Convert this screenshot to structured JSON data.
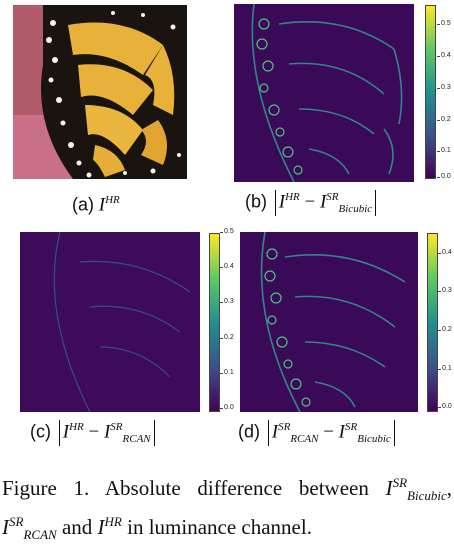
{
  "panels": {
    "a": {
      "letter": "(a)",
      "var": "I",
      "sup": "HR",
      "sub": ""
    },
    "b": {
      "letter": "(b)",
      "a_var": "I",
      "a_sup": "HR",
      "a_sub": "",
      "minus": "−",
      "b_var": "I",
      "b_sup": "SR",
      "b_sub": "Bicubic"
    },
    "c": {
      "letter": "(c)",
      "a_var": "I",
      "a_sup": "HR",
      "a_sub": "",
      "minus": "−",
      "b_var": "I",
      "b_sup": "SR",
      "b_sub": "RCAN"
    },
    "d": {
      "letter": "(d)",
      "a_var": "I",
      "a_sup": "SR",
      "a_sub": "RCAN",
      "minus": "−",
      "b_var": "I",
      "b_sup": "SR",
      "b_sub": "Bicubic"
    }
  },
  "colorbars": {
    "b": {
      "colormap": "viridis",
      "ticks": [
        "0.5",
        "0.4",
        "0.3",
        "0.2",
        "0.1",
        "0.0"
      ]
    },
    "c": {
      "colormap": "viridis",
      "ticks": [
        "0.5",
        "0.4",
        "0.3",
        "0.2",
        "0.1",
        "0.0"
      ]
    },
    "d": {
      "colormap": "viridis",
      "ticks": [
        "0.4",
        "0.3",
        "0.2",
        "0.1",
        "0.0"
      ]
    }
  },
  "figure_caption": {
    "prefix": "Figure 1.  Absolute difference between",
    "i1_var": "I",
    "i1_sup": "SR",
    "i1_sub": "Bicubic",
    "sep": ",",
    "i2_var": "I",
    "i2_sup": "SR",
    "i2_sub": "RCAN",
    "and": "and",
    "i3_var": "I",
    "i3_sup": "HR",
    "suffix": "in luminance channel."
  },
  "colors": {
    "butterfly_yellow": "#e8b23a",
    "butterfly_black": "#1a1410",
    "viridis_low": "#440154",
    "viridis_high": "#fde725"
  }
}
